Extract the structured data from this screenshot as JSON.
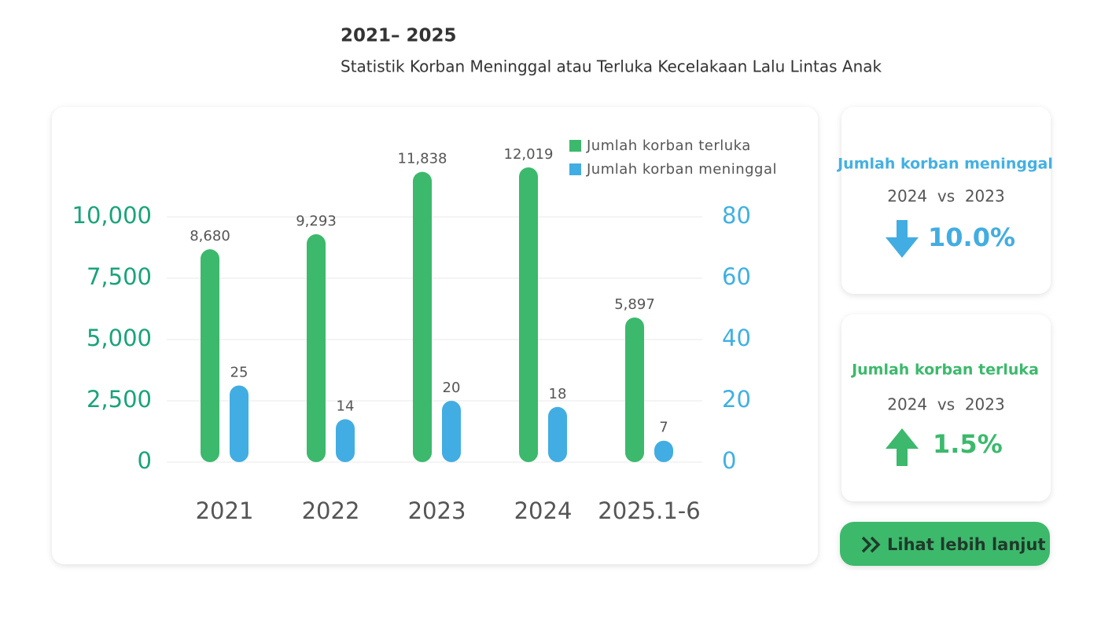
{
  "header": {
    "title": "2021– 2025",
    "subtitle": "Statistik Korban Meninggal atau Terluka Kecelakaan Lalu Lintas Anak"
  },
  "chart_data": {
    "type": "bar",
    "categories": [
      "2021",
      "2022",
      "2023",
      "2024",
      "2025.1-6"
    ],
    "series": [
      {
        "name": "Jumlah korban terluka",
        "color": "#3cb96c",
        "values": [
          8680,
          9293,
          11838,
          12019,
          5897
        ],
        "value_labels": [
          "8,680",
          "9,293",
          "11,838",
          "12,019",
          "5,897"
        ]
      },
      {
        "name": "Jumlah korban meninggal",
        "color": "#42ade2",
        "axis": "y2",
        "values": [
          25,
          14,
          20,
          18,
          7
        ]
      }
    ],
    "ylim": [
      0,
      12500
    ],
    "yticks": [
      0,
      {
        "value": 2500,
        "label": "2,500"
      },
      {
        "value": 5000,
        "label": "5,000"
      },
      {
        "value": 7500,
        "label": "7,500"
      },
      {
        "value": 10000,
        "label": "10,000"
      }
    ],
    "y2lim": [
      0,
      100
    ],
    "y2ticks": [
      0,
      20,
      40,
      60,
      80
    ],
    "grid": true
  },
  "cards": [
    {
      "title": "Jumlah korban meninggal",
      "compare": "2024  vs  2023",
      "change": "10.0%"
    },
    {
      "title": "Jumlah korban terluka",
      "compare": "2024  vs  2023",
      "change": "1.5%"
    }
  ],
  "button": {
    "label": "Lihat lebih lanjut"
  }
}
